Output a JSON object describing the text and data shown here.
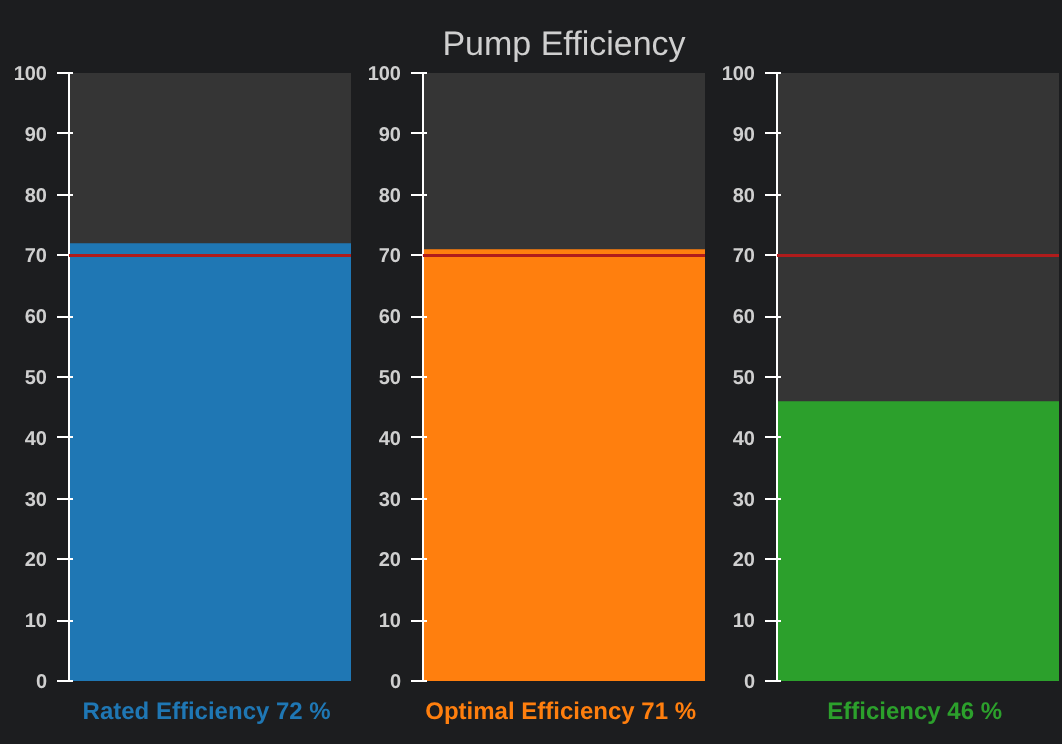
{
  "chart_data": [
    {
      "type": "bar",
      "categories": [
        "Rated Efficiency"
      ],
      "values": [
        72
      ],
      "value_labels": [
        "72 %"
      ],
      "colors": [
        "#1f77b4"
      ],
      "ylim": [
        0,
        100
      ],
      "yticks": [
        0,
        10,
        20,
        30,
        40,
        50,
        60,
        70,
        80,
        90,
        100
      ],
      "ref_lines": [
        {
          "axis": "y",
          "value": 70,
          "color": "#b01c1c"
        }
      ],
      "grid": false
    },
    {
      "type": "bar",
      "title": "Pump Efficiency",
      "categories": [
        "Optimal Efficiency"
      ],
      "values": [
        71
      ],
      "value_labels": [
        "71 %"
      ],
      "colors": [
        "#ff7f0e"
      ],
      "ylim": [
        0,
        100
      ],
      "yticks": [
        0,
        10,
        20,
        30,
        40,
        50,
        60,
        70,
        80,
        90,
        100
      ],
      "ref_lines": [
        {
          "axis": "y",
          "value": 70,
          "color": "#b01c1c"
        }
      ],
      "grid": false
    },
    {
      "type": "bar",
      "categories": [
        "Efficiency"
      ],
      "values": [
        46
      ],
      "value_labels": [
        "46 %"
      ],
      "colors": [
        "#2ca02c"
      ],
      "ylim": [
        0,
        100
      ],
      "yticks": [
        0,
        10,
        20,
        30,
        40,
        50,
        60,
        70,
        80,
        90,
        100
      ],
      "ref_lines": [
        {
          "axis": "y",
          "value": 70,
          "color": "#b01c1c"
        }
      ],
      "grid": false
    }
  ]
}
